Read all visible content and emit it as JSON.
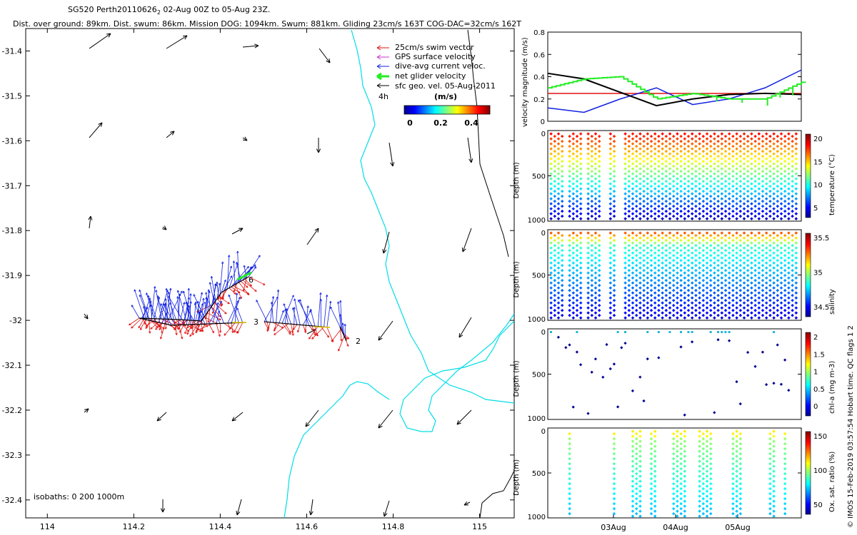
{
  "header": {
    "title_main": "SG520 Perth20110626",
    "title_sub": "2",
    "title_rest": " 02-Aug 00Z to 05-Aug 23Z.",
    "stats": "Dist. over ground: 89km. Dist. swum: 86km. Mission DOG: 1094km. Swum: 881km. Gliding 23cm/s 163T COG-DAC=32cm/s 162T"
  },
  "colors": {
    "swim": "#e01010",
    "gps": "#cc33cc",
    "current": "#1020e0",
    "net": "#22ee22",
    "sfc": "#000000",
    "isobath": "#00dde8",
    "black_line": "#000000"
  },
  "chart_data": [
    {
      "type": "map",
      "legend": [
        {
          "label": "25cm/s swim vector",
          "color": "#e01010",
          "icon": "red-arrow-icon"
        },
        {
          "label": "GPS surface velocity",
          "color": "#cc33cc",
          "icon": "magenta-arrow-icon"
        },
        {
          "label": "dive-avg current veloc.",
          "color": "#1020e0",
          "icon": "blue-arrow-icon"
        },
        {
          "label": "net glider velocity",
          "color": "#22ee22",
          "icon": "green-arrow-icon"
        },
        {
          "label": "sfc geo. vel. 05-Aug-2011",
          "color": "#000000",
          "icon": "black-arrow-icon"
        }
      ],
      "time_label": "4h",
      "colorbar": {
        "label": "(m/s)",
        "ticks": [
          "0",
          "0.2",
          "0.4"
        ]
      },
      "xticks": [
        "114",
        "114.2",
        "114.4",
        "114.6",
        "114.8",
        "115"
      ],
      "yticks": [
        "-31.4",
        "-31.5",
        "-31.6",
        "-31.7",
        "-31.8",
        "-31.9",
        "-32",
        "-32.1",
        "-32.2",
        "-32.3",
        "-32.4"
      ],
      "xlim": [
        113.95,
        115.08
      ],
      "ylim": [
        -32.44,
        -31.35
      ],
      "track_labels": [
        "6",
        "3",
        "2"
      ],
      "isobaths_label": "isobaths: 0   200   1000m"
    },
    {
      "type": "line",
      "ylabel": "velocity magnitude (m/s)",
      "ylim": [
        0,
        0.8
      ],
      "yticks": [
        "0",
        "0.2",
        "0.4",
        "0.6",
        "0.8"
      ],
      "series": [
        {
          "color": "#e01010",
          "values": [
            0.25,
            0.25
          ]
        },
        {
          "color": "#1020e0",
          "values": [
            0.12,
            0.08,
            0.2,
            0.3,
            0.15,
            0.2,
            0.3,
            0.46
          ]
        },
        {
          "color": "#000000",
          "values": [
            0.43,
            0.38,
            0.26,
            0.14,
            0.2,
            0.24,
            0.25,
            0.24
          ]
        },
        {
          "color": "#22ee22",
          "values": [
            0.3,
            0.38,
            0.4,
            0.2,
            0.25,
            0.2,
            0.2,
            0.35
          ]
        }
      ]
    },
    {
      "type": "scatter",
      "ylabel": "Depth (m)",
      "yticks": [
        "0",
        "500",
        "1000"
      ],
      "colorbar_label": "temperature (°C)",
      "colorbar_ticks": [
        "20",
        "15",
        "10",
        "5"
      ]
    },
    {
      "type": "scatter",
      "ylabel": "Depth (m)",
      "yticks": [
        "0",
        "500",
        "1000"
      ],
      "colorbar_label": "salinity",
      "colorbar_ticks": [
        "35.5",
        "35",
        "34.5"
      ]
    },
    {
      "type": "scatter",
      "ylabel": "Depth (m)",
      "yticks": [
        "0",
        "500",
        "1000"
      ],
      "colorbar_label": "chl-a (mg m-3)",
      "colorbar_ticks": [
        "2",
        "1.5",
        "1",
        "0.5",
        "0"
      ]
    },
    {
      "type": "scatter",
      "ylabel": "Depth (m)",
      "yticks": [
        "0",
        "500",
        "1000"
      ],
      "colorbar_label": "Ox. sat. ratio (%)",
      "colorbar_ticks": [
        "150",
        "100",
        "50"
      ],
      "xticks": [
        "03Aug",
        "04Aug",
        "05Aug"
      ]
    }
  ],
  "side_note": "© IMOS 15-Feb-2019 03:57:54 Hobart time. QC flags 1  2"
}
